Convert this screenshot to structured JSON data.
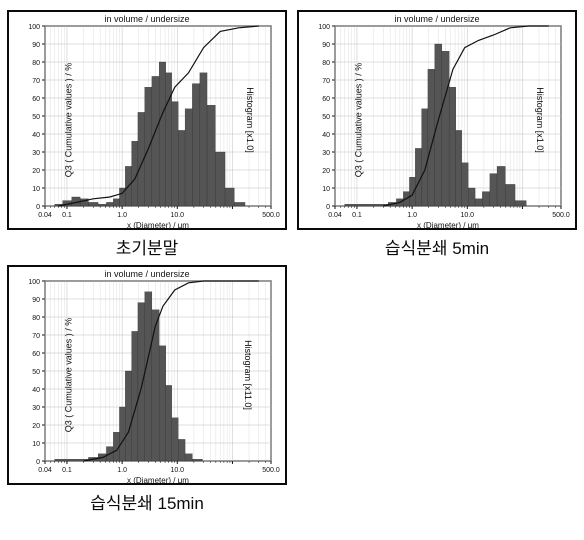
{
  "charts": [
    {
      "caption": "초기분말",
      "top_label": "in volume / undersize",
      "xlabel": "x (Diameter) / μm",
      "ylabel_left": "Q3 ( Cumulative values ) / %",
      "ylabel_right": "Histogram [x1.0]",
      "type": "histogram+cumulative",
      "xlog": true,
      "xlim": [
        0.04,
        500.0
      ],
      "ylim": [
        0,
        100
      ],
      "ytick_step": 10,
      "xticks_major": [
        0.04,
        0.1,
        1.0,
        10.0,
        100.0,
        500.0
      ],
      "xtick_labels": [
        "0.04",
        "0.1",
        "1.0",
        "10.0",
        "",
        "500.0"
      ],
      "bar_color": "#555555",
      "line_color": "#111111",
      "grid_color": "#bfbfbf",
      "background_color": "#ffffff",
      "title_fontsize": 9,
      "label_fontsize": 9,
      "histogram": {
        "x": [
          0.07,
          0.1,
          0.15,
          0.2,
          0.3,
          0.45,
          0.6,
          0.8,
          1.0,
          1.3,
          1.7,
          2.2,
          3.0,
          4.0,
          5.5,
          7.0,
          9.0,
          12,
          16,
          22,
          30,
          40,
          60,
          90,
          130
        ],
        "y": [
          1,
          3,
          5,
          4,
          2,
          1,
          2,
          4,
          10,
          22,
          36,
          52,
          66,
          72,
          80,
          74,
          58,
          42,
          54,
          68,
          74,
          56,
          30,
          10,
          2
        ]
      },
      "cumulative": {
        "x": [
          0.07,
          0.15,
          0.3,
          0.6,
          1.0,
          1.7,
          3.0,
          5.5,
          9.0,
          16,
          30,
          60,
          130,
          300
        ],
        "y": [
          0,
          2,
          4,
          5,
          7,
          15,
          32,
          52,
          66,
          74,
          88,
          97,
          99,
          100
        ]
      }
    },
    {
      "caption": "습식분쇄 5min",
      "top_label": "in volume / undersize",
      "xlabel": "x (Diameter) / μm",
      "ylabel_left": "Q3 ( Cumulative values ) / %",
      "ylabel_right": "Histogram [x1.0]",
      "type": "histogram+cumulative",
      "xlog": true,
      "xlim": [
        0.04,
        500.0
      ],
      "ylim": [
        0,
        100
      ],
      "ytick_step": 10,
      "xticks_major": [
        0.04,
        0.1,
        1.0,
        10.0,
        100.0,
        500.0
      ],
      "xtick_labels": [
        "0.04",
        "0.1",
        "1.0",
        "10.0",
        "",
        "500.0"
      ],
      "bar_color": "#555555",
      "line_color": "#111111",
      "grid_color": "#bfbfbf",
      "background_color": "#ffffff",
      "title_fontsize": 9,
      "label_fontsize": 9,
      "histogram": {
        "x": [
          0.3,
          0.45,
          0.6,
          0.8,
          1.0,
          1.3,
          1.7,
          2.2,
          3.0,
          4.0,
          5.5,
          7.0,
          9.0,
          12,
          16,
          22,
          30,
          40,
          60,
          90
        ],
        "y": [
          1,
          2,
          4,
          8,
          16,
          32,
          54,
          76,
          90,
          86,
          66,
          42,
          24,
          10,
          4,
          8,
          18,
          22,
          12,
          3
        ]
      },
      "cumulative": {
        "x": [
          0.3,
          0.6,
          1.0,
          1.7,
          3.0,
          5.5,
          9.0,
          16,
          30,
          60,
          130,
          300
        ],
        "y": [
          0,
          2,
          6,
          20,
          48,
          76,
          88,
          92,
          95,
          99,
          100,
          100
        ]
      }
    },
    {
      "caption": "습식분쇄 15min",
      "top_label": "in volume / undersize",
      "xlabel": "x (Diameter) / μm",
      "ylabel_left": "Q3 ( Cumulative values ) / %",
      "ylabel_right": "Histogram [x11.0]",
      "type": "histogram+cumulative",
      "xlog": true,
      "xlim": [
        0.04,
        500.0
      ],
      "ylim": [
        0,
        100
      ],
      "ytick_step": 10,
      "xticks_major": [
        0.04,
        0.1,
        1.0,
        10.0,
        100.0,
        500.0
      ],
      "xtick_labels": [
        "0.04",
        "0.1",
        "1.0",
        "10.0",
        "",
        "500.0"
      ],
      "bar_color": "#555555",
      "line_color": "#111111",
      "grid_color": "#bfbfbf",
      "background_color": "#ffffff",
      "title_fontsize": 9,
      "label_fontsize": 9,
      "histogram": {
        "x": [
          0.2,
          0.3,
          0.45,
          0.6,
          0.8,
          1.0,
          1.3,
          1.7,
          2.2,
          3.0,
          4.0,
          5.5,
          7.0,
          9.0,
          12,
          16,
          22
        ],
        "y": [
          1,
          2,
          4,
          8,
          16,
          30,
          50,
          72,
          88,
          94,
          84,
          64,
          42,
          24,
          12,
          4,
          1
        ]
      },
      "cumulative": {
        "x": [
          0.2,
          0.45,
          0.8,
          1.3,
          2.2,
          3.0,
          4.0,
          5.5,
          9.0,
          16,
          30,
          60,
          130,
          300
        ],
        "y": [
          0,
          2,
          6,
          16,
          40,
          58,
          75,
          86,
          95,
          99,
          100,
          100,
          100,
          100
        ]
      }
    }
  ]
}
